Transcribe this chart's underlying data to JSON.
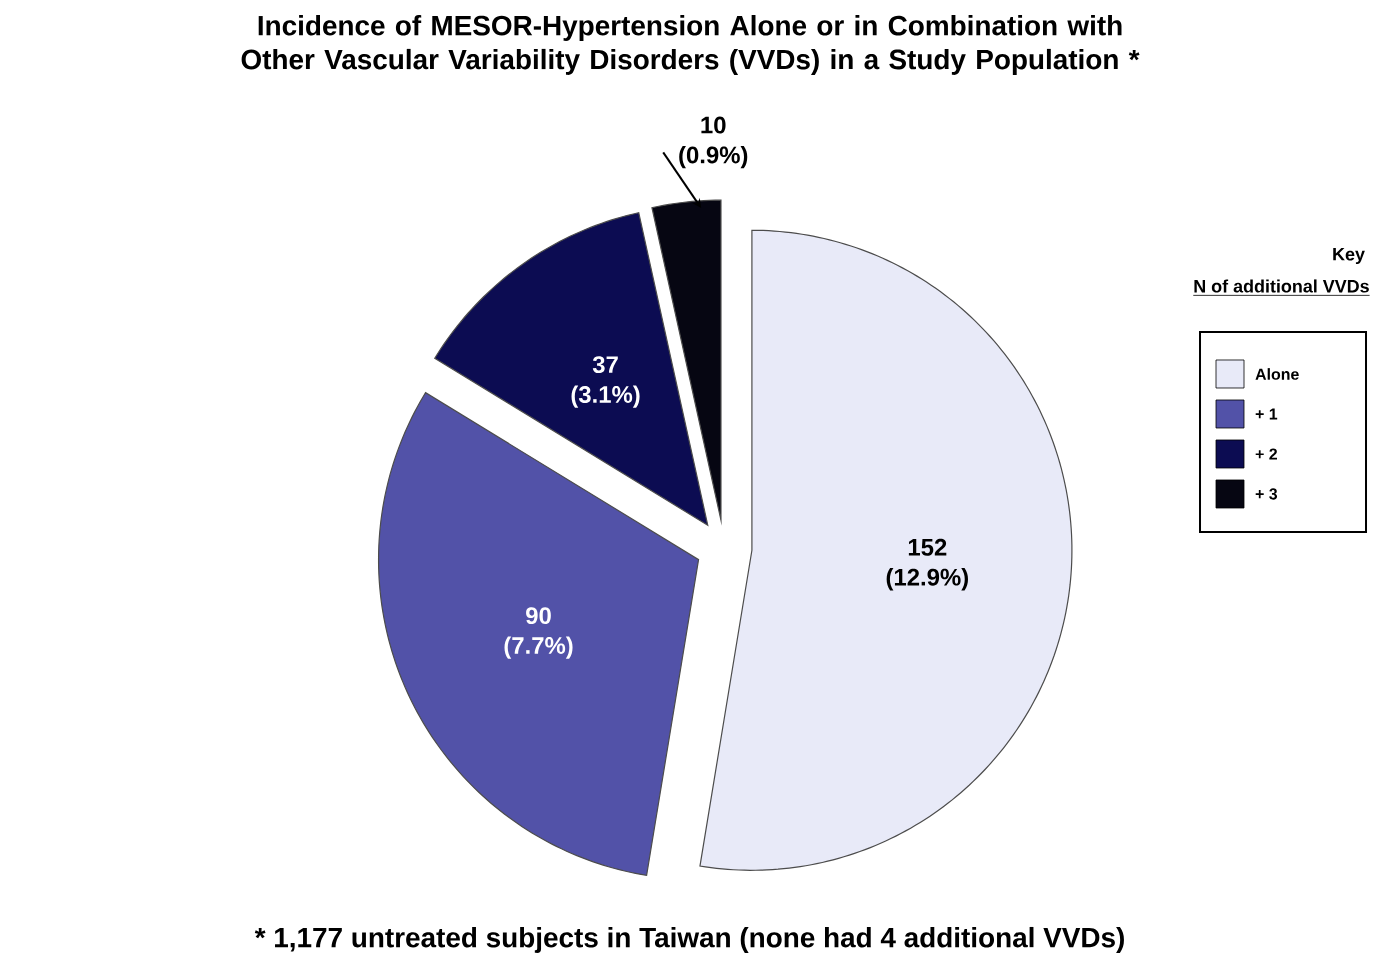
{
  "chart_data": {
    "type": "pie",
    "title": "Incidence of MESOR-Hypertension Alone or in Combination with Other Vascular Variability Disorders (VVDs) in a Study Population *",
    "categories": [
      "Alone",
      "+ 1",
      "+ 2",
      "+ 3"
    ],
    "values": [
      152,
      90,
      37,
      10
    ],
    "value_labels": [
      "152 (12.9%)",
      "90 (7.7%)",
      "37 (3.1%)",
      "10 (0.9%)"
    ],
    "colors": [
      "#e8eaf8",
      "#5252a8",
      "#0c0c52",
      "#060612"
    ],
    "legend": "right",
    "legend_title": "Key",
    "annotations": [
      "* 1,177 untreated subjects in Taiwan (none had 4 additional VVDs)",
      "N of additional VVDs"
    ]
  }
}
